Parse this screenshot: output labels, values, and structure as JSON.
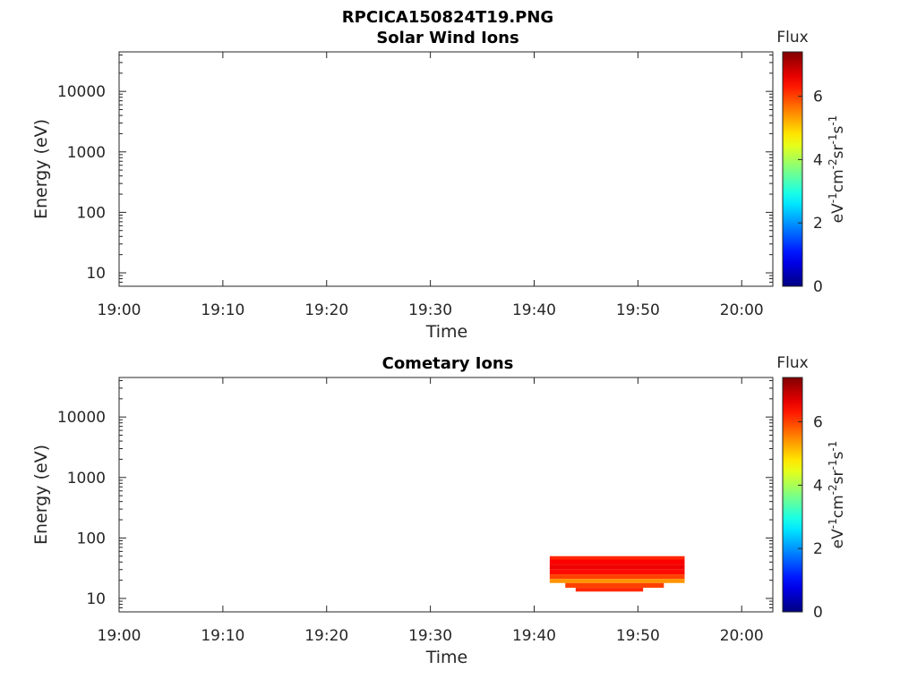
{
  "title": "RPCICA150824T19.PNG",
  "chart_data": [
    {
      "type": "heatmap",
      "title": "Solar Wind Ions",
      "xlabel": "Time",
      "ylabel": "Energy (eV)",
      "x_ticks": [
        "19:00",
        "19:10",
        "19:20",
        "19:30",
        "19:40",
        "19:50",
        "20:00"
      ],
      "xlim": [
        "19:00",
        "20:03"
      ],
      "y_ticks": [
        10,
        100,
        1000,
        10000
      ],
      "ylim": [
        6,
        45000
      ],
      "y_scale": "log",
      "colorbar": {
        "title": "Flux",
        "label": "eV-1cm-2sr-1s-1",
        "ticks": [
          0,
          2,
          4,
          6
        ],
        "range": [
          0,
          7.4
        ]
      },
      "data": []
    },
    {
      "type": "heatmap",
      "title": "Cometary Ions",
      "xlabel": "Time",
      "ylabel": "Energy (eV)",
      "x_ticks": [
        "19:00",
        "19:10",
        "19:20",
        "19:30",
        "19:40",
        "19:50",
        "20:00"
      ],
      "xlim": [
        "19:00",
        "20:03"
      ],
      "y_ticks": [
        10,
        100,
        1000,
        10000
      ],
      "ylim": [
        6,
        45000
      ],
      "y_scale": "log",
      "colorbar": {
        "title": "Flux",
        "label": "eV-1cm-2sr-1s-1",
        "ticks": [
          0,
          2,
          4,
          6
        ],
        "range": [
          0,
          7.4
        ]
      },
      "data": [
        {
          "t0": "19:41:30",
          "t1": "19:54:30",
          "e0": 44,
          "e1": 50,
          "flux": 6.2
        },
        {
          "t0": "19:41:30",
          "t1": "19:54:30",
          "e0": 36,
          "e1": 44,
          "flux": 6.5
        },
        {
          "t0": "19:41:30",
          "t1": "19:54:30",
          "e0": 30,
          "e1": 36,
          "flux": 6.6
        },
        {
          "t0": "19:41:30",
          "t1": "19:54:30",
          "e0": 25,
          "e1": 30,
          "flux": 6.4
        },
        {
          "t0": "19:41:30",
          "t1": "19:54:30",
          "e0": 21,
          "e1": 25,
          "flux": 6.0
        },
        {
          "t0": "19:41:30",
          "t1": "19:54:30",
          "e0": 18,
          "e1": 21,
          "flux": 5.4
        },
        {
          "t0": "19:43:00",
          "t1": "19:52:30",
          "e0": 15,
          "e1": 18,
          "flux": 6.0
        },
        {
          "t0": "19:44:00",
          "t1": "19:50:30",
          "e0": 13,
          "e1": 15,
          "flux": 6.2
        }
      ]
    }
  ]
}
